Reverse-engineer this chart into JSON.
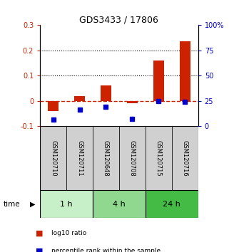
{
  "title": "GDS3433 / 17806",
  "samples": [
    "GSM120710",
    "GSM120711",
    "GSM120648",
    "GSM120708",
    "GSM120715",
    "GSM120716"
  ],
  "log10_ratio": [
    -0.04,
    0.02,
    0.06,
    -0.01,
    0.16,
    0.235
  ],
  "percentile_rank": [
    0.065,
    0.16,
    0.19,
    0.073,
    0.25,
    0.243
  ],
  "time_groups": [
    {
      "label": "1 h",
      "samples": [
        0,
        1
      ],
      "color": "#c8f0c8"
    },
    {
      "label": "4 h",
      "samples": [
        2,
        3
      ],
      "color": "#90d890"
    },
    {
      "label": "24 h",
      "samples": [
        4,
        5
      ],
      "color": "#44bb44"
    }
  ],
  "ylim_left": [
    -0.1,
    0.3
  ],
  "ylim_right": [
    0,
    100
  ],
  "yticks_left": [
    -0.1,
    0.0,
    0.1,
    0.2,
    0.3
  ],
  "ytick_labels_left": [
    "-0.1",
    "0",
    "0.1",
    "0.2",
    "0.3"
  ],
  "yticks_right": [
    0,
    25,
    50,
    75,
    100
  ],
  "ytick_labels_right": [
    "0",
    "25",
    "50",
    "75",
    "100%"
  ],
  "bar_color": "#cc2200",
  "dot_color": "#0000cc",
  "zero_line_color": "#cc2200",
  "dotted_line_color": "#000000",
  "bg_color": "#ffffff",
  "sample_box_color": "#d0d0d0",
  "legend_labels": [
    "log10 ratio",
    "percentile rank within the sample"
  ],
  "time_label": "time"
}
